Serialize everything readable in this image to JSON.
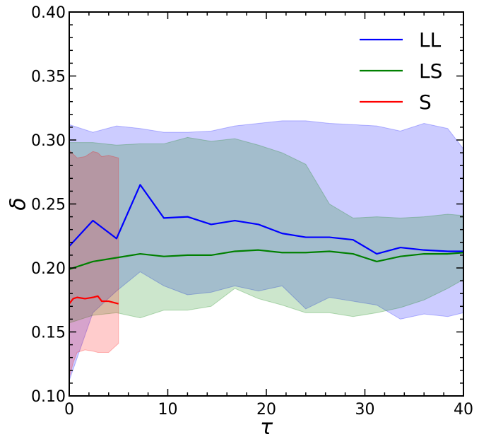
{
  "chart_data": {
    "type": "line",
    "title": "",
    "xlabel": "τ",
    "ylabel": "δ",
    "xlim": [
      0,
      40
    ],
    "ylim": [
      0.1,
      0.4
    ],
    "xticks": [
      0,
      10,
      20,
      30,
      40
    ],
    "xtick_labels": [
      "0",
      "10",
      "20",
      "30",
      "40"
    ],
    "yticks": [
      0.1,
      0.15,
      0.2,
      0.25,
      0.3,
      0.35,
      0.4
    ],
    "ytick_labels": [
      "0.10",
      "0.15",
      "0.20",
      "0.25",
      "0.30",
      "0.35",
      "0.40"
    ],
    "grid": false,
    "legend_position": "top-right",
    "series": [
      {
        "name": "LL",
        "color": "#0000ff",
        "band_color": "#0000ff",
        "band_opacity": 0.2,
        "x": [
          0,
          2.4,
          4.8,
          7.2,
          9.6,
          12,
          14.4,
          16.8,
          19.2,
          21.6,
          24,
          26.4,
          28.8,
          31.2,
          33.6,
          36,
          38.4,
          40
        ],
        "y": [
          0.217,
          0.237,
          0.223,
          0.265,
          0.239,
          0.24,
          0.234,
          0.237,
          0.234,
          0.227,
          0.224,
          0.224,
          0.222,
          0.211,
          0.216,
          0.214,
          0.213,
          0.213
        ],
        "lower": [
          0.112,
          0.165,
          0.182,
          0.197,
          0.186,
          0.179,
          0.181,
          0.186,
          0.182,
          0.186,
          0.168,
          0.177,
          0.174,
          0.171,
          0.16,
          0.164,
          0.162,
          0.165
        ],
        "upper": [
          0.312,
          0.306,
          0.311,
          0.309,
          0.306,
          0.306,
          0.307,
          0.311,
          0.313,
          0.315,
          0.315,
          0.313,
          0.312,
          0.311,
          0.307,
          0.313,
          0.309,
          0.293
        ]
      },
      {
        "name": "LS",
        "color": "#008000",
        "band_color": "#008000",
        "band_opacity": 0.2,
        "x": [
          0,
          2.4,
          4.8,
          7.2,
          9.6,
          12,
          14.4,
          16.8,
          19.2,
          21.6,
          24,
          26.4,
          28.8,
          31.2,
          33.6,
          36,
          38.4,
          40
        ],
        "y": [
          0.199,
          0.205,
          0.208,
          0.211,
          0.209,
          0.21,
          0.21,
          0.213,
          0.214,
          0.212,
          0.212,
          0.213,
          0.211,
          0.205,
          0.209,
          0.211,
          0.211,
          0.212
        ],
        "lower": [
          0.157,
          0.163,
          0.165,
          0.161,
          0.167,
          0.167,
          0.17,
          0.184,
          0.176,
          0.171,
          0.165,
          0.165,
          0.162,
          0.165,
          0.169,
          0.175,
          0.184,
          0.191
        ],
        "upper": [
          0.298,
          0.298,
          0.296,
          0.297,
          0.297,
          0.302,
          0.299,
          0.301,
          0.296,
          0.29,
          0.281,
          0.25,
          0.239,
          0.24,
          0.239,
          0.24,
          0.242,
          0.241
        ]
      },
      {
        "name": "S",
        "color": "#ff0000",
        "band_color": "#ff0000",
        "band_opacity": 0.2,
        "x": [
          0,
          0.4,
          0.8,
          1.6,
          2.4,
          2.9,
          3.3,
          4.0,
          5.0
        ],
        "y": [
          0.172,
          0.176,
          0.177,
          0.176,
          0.177,
          0.178,
          0.174,
          0.174,
          0.172
        ],
        "lower": [
          0.114,
          0.126,
          0.134,
          0.136,
          0.135,
          0.134,
          0.134,
          0.134,
          0.141
        ],
        "upper": [
          0.292,
          0.289,
          0.286,
          0.287,
          0.291,
          0.29,
          0.287,
          0.288,
          0.286
        ]
      }
    ]
  }
}
